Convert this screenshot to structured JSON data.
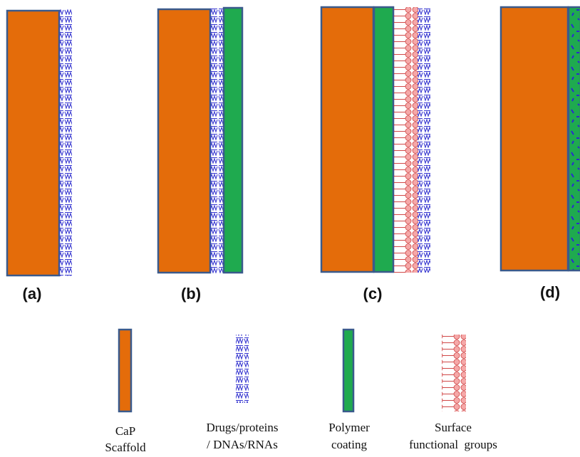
{
  "panels": [
    {
      "label": "(a)"
    },
    {
      "label": "(b)"
    },
    {
      "label": "(c)"
    },
    {
      "label": "(d)"
    }
  ],
  "legend": [
    {
      "lines": [
        "CaP",
        "Scaffold"
      ]
    },
    {
      "lines": [
        "Drugs/proteins",
        "/ DNAs/RNAs"
      ]
    },
    {
      "lines": [
        "Polymer",
        "coating"
      ]
    },
    {
      "lines": [
        "Surface",
        "functional  groups"
      ]
    }
  ]
}
